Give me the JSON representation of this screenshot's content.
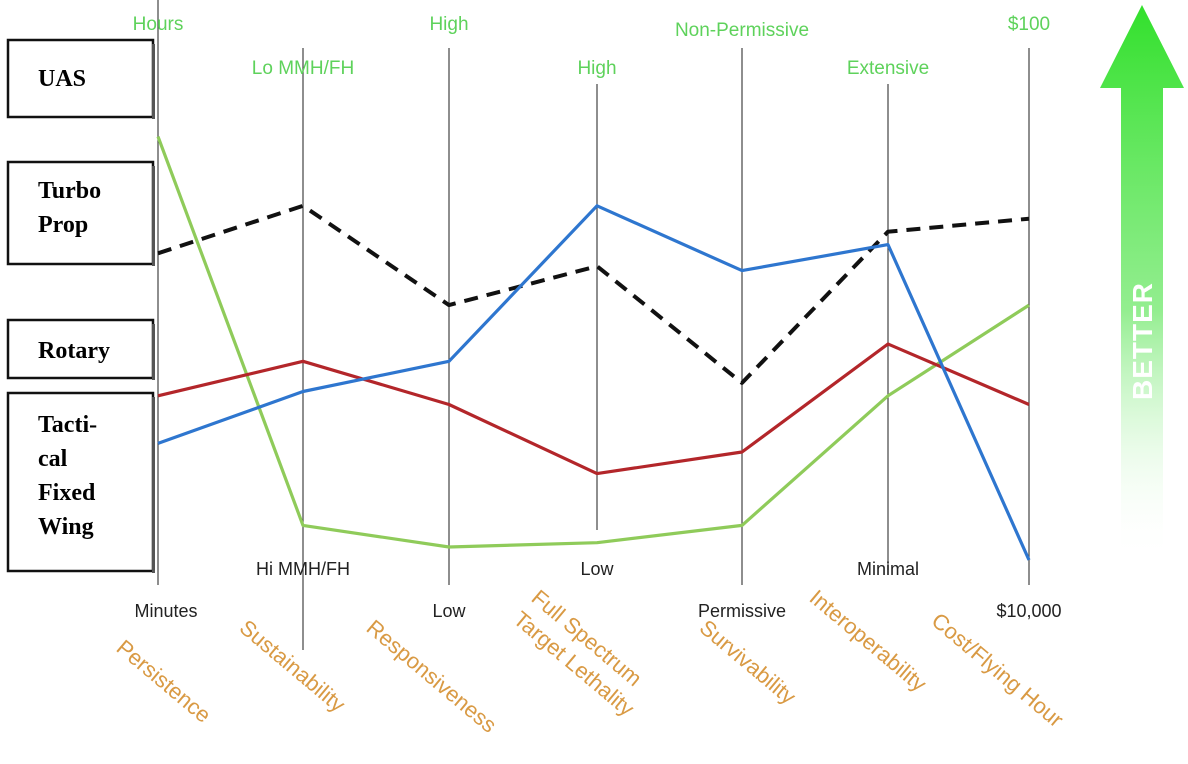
{
  "chart_data": {
    "type": "line",
    "axes": [
      {
        "name": "Persistence",
        "top": "Hours",
        "bottom": "Minutes"
      },
      {
        "name": "Sustainability",
        "top": "Lo MMH/FH",
        "bottom": "Hi MMH/FH"
      },
      {
        "name": "Responsiveness",
        "top": "High",
        "bottom": "Low"
      },
      {
        "name": "Full Spectrum\nTarget Lethality",
        "top": "High",
        "bottom": "Low"
      },
      {
        "name": "Survivability",
        "top": "Non-Permissive",
        "bottom": "Permissive"
      },
      {
        "name": "Interoperability",
        "top": "Extensive",
        "bottom": "Minimal"
      },
      {
        "name": "Cost/Flying Hour",
        "top": "$100",
        "bottom": "$10,000"
      }
    ],
    "ylim": [
      0,
      1
    ],
    "series": [
      {
        "name": "UAS",
        "color": "#8fcb5a",
        "dash": false,
        "values": [
          0.98,
          0.08,
          0.03,
          0.04,
          0.08,
          0.38,
          0.59
        ]
      },
      {
        "name": "Turbo Prop",
        "color": "#111111",
        "dash": true,
        "values": [
          0.71,
          0.82,
          0.59,
          0.68,
          0.41,
          0.76,
          0.79
        ]
      },
      {
        "name": "Rotary",
        "color": "#b3262a",
        "dash": false,
        "values": [
          0.38,
          0.46,
          0.36,
          0.2,
          0.25,
          0.5,
          0.36
        ]
      },
      {
        "name": "Tactical Fixed Wing",
        "color": "#2e76cf",
        "dash": false,
        "values": [
          0.27,
          0.39,
          0.46,
          0.82,
          0.67,
          0.73,
          0.0
        ]
      }
    ],
    "legend": {
      "labels": [
        {
          "name": "UAS",
          "lines": [
            "UAS"
          ]
        },
        {
          "name": "Turbo Prop",
          "lines": [
            "Turbo",
            "Prop"
          ]
        },
        {
          "name": "Rotary",
          "lines": [
            "Rotary"
          ]
        },
        {
          "name": "Tactical Fixed Wing",
          "lines": [
            "Tacti-",
            "cal",
            "Fixed",
            "Wing"
          ]
        }
      ]
    },
    "indicator": {
      "label": "BETTER",
      "color": "#3ee03a"
    }
  }
}
